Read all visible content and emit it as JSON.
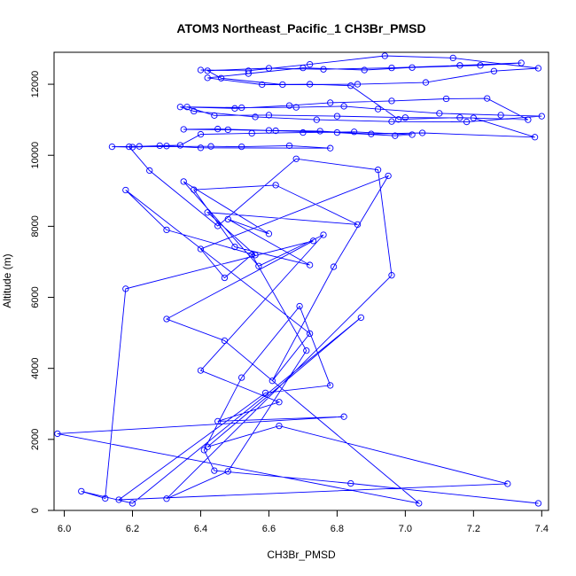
{
  "chart_data": {
    "type": "line",
    "title": "ATOM3 Northeast_Pacific_1 CH3Br_PMSD",
    "xlabel": "CH3Br_PMSD",
    "ylabel": "Altitude (m)",
    "xlim": [
      5.97,
      7.42
    ],
    "ylim": [
      0,
      12900
    ],
    "x_ticks": [
      6.0,
      6.2,
      6.4,
      6.6,
      6.8,
      7.0,
      7.2,
      7.4
    ],
    "x_tick_labels": [
      "6.0",
      "6.2",
      "6.4",
      "6.6",
      "6.8",
      "7.0",
      "7.2",
      "7.4"
    ],
    "y_ticks": [
      0,
      2000,
      4000,
      6000,
      8000,
      10000,
      12000
    ],
    "y_tick_labels": [
      "0",
      "2000",
      "4000",
      "6000",
      "8000",
      "10000",
      "12000"
    ],
    "grid": false,
    "series_color": "#0000ff",
    "marker": "open-circle",
    "series": [
      {
        "x": [
          7.39,
          6.84,
          6.44,
          6.41,
          6.52,
          6.69,
          6.78,
          6.59,
          6.16,
          7.3,
          6.63,
          6.42,
          6.87,
          6.2,
          6.05,
          6.12,
          6.18,
          6.73,
          6.3,
          6.47,
          7.04,
          5.98,
          6.82,
          6.45,
          6.63,
          6.4,
          6.76,
          6.57,
          6.35,
          6.6,
          6.48,
          6.72,
          6.5,
          6.38,
          6.62,
          6.86,
          6.42,
          6.56,
          6.3,
          6.18,
          6.72,
          6.61,
          6.79,
          6.95,
          6.4,
          6.47,
          6.55,
          6.71,
          6.48,
          6.3,
          6.96,
          6.92,
          6.68,
          6.45,
          6.25,
          6.19,
          6.43,
          6.52,
          6.66,
          6.78,
          6.4,
          6.3,
          6.2,
          6.14,
          6.22,
          6.28,
          6.34,
          6.4,
          6.55,
          6.7,
          6.85,
          7.02,
          6.97,
          6.8,
          6.62,
          6.48,
          6.35,
          6.45,
          6.6,
          6.75,
          6.9,
          7.05,
          7.38,
          7.2,
          7.0,
          6.8,
          6.6,
          6.44,
          6.36,
          6.52,
          6.68,
          6.82,
          6.92,
          7.1,
          7.28,
          7.4,
          7.18,
          6.96,
          6.74,
          6.56,
          6.38,
          6.34,
          6.5,
          6.66,
          6.78,
          6.96,
          7.12,
          7.24,
          7.36,
          7.16,
          6.98,
          6.84,
          6.72,
          6.58,
          6.42,
          6.54,
          6.7,
          6.88,
          7.02,
          7.22,
          7.34,
          7.16,
          6.96,
          6.76,
          6.6,
          6.42,
          6.46,
          6.64,
          6.86,
          7.06,
          7.26,
          7.39,
          7.14,
          6.94,
          6.72,
          6.54,
          6.4
        ],
        "y": [
          200,
          760,
          1120,
          1700,
          3740,
          5750,
          3520,
          3310,
          300,
          750,
          2380,
          1790,
          5430,
          200,
          540,
          340,
          6240,
          7590,
          5390,
          4780,
          200,
          2160,
          2640,
          2510,
          3050,
          3940,
          7760,
          6880,
          9260,
          7790,
          8200,
          6910,
          7420,
          9030,
          9160,
          8050,
          8390,
          7190,
          7900,
          9020,
          4980,
          3650,
          6860,
          9420,
          7360,
          6550,
          7200,
          4500,
          1100,
          330,
          6620,
          9590,
          9900,
          8010,
          9570,
          10240,
          10250,
          10240,
          10270,
          10200,
          10210,
          10260,
          10230,
          10240,
          10250,
          10270,
          10280,
          10590,
          10620,
          10640,
          10660,
          10580,
          10550,
          10640,
          10690,
          10720,
          10730,
          10740,
          10700,
          10680,
          10600,
          10630,
          10510,
          11050,
          11060,
          11100,
          11130,
          11120,
          11360,
          11340,
          11350,
          11380,
          11300,
          11180,
          11130,
          11100,
          10940,
          10950,
          11000,
          11080,
          11240,
          11360,
          11320,
          11400,
          11480,
          11530,
          11590,
          11600,
          11000,
          11060,
          11010,
          11960,
          12000,
          11990,
          12180,
          12300,
          12460,
          12400,
          12470,
          12530,
          12600,
          12530,
          12460,
          12420,
          12450,
          12380,
          12170,
          11990,
          12000,
          12050,
          12370,
          12450,
          12740,
          12800,
          12560,
          12380,
          12400
        ]
      }
    ]
  }
}
